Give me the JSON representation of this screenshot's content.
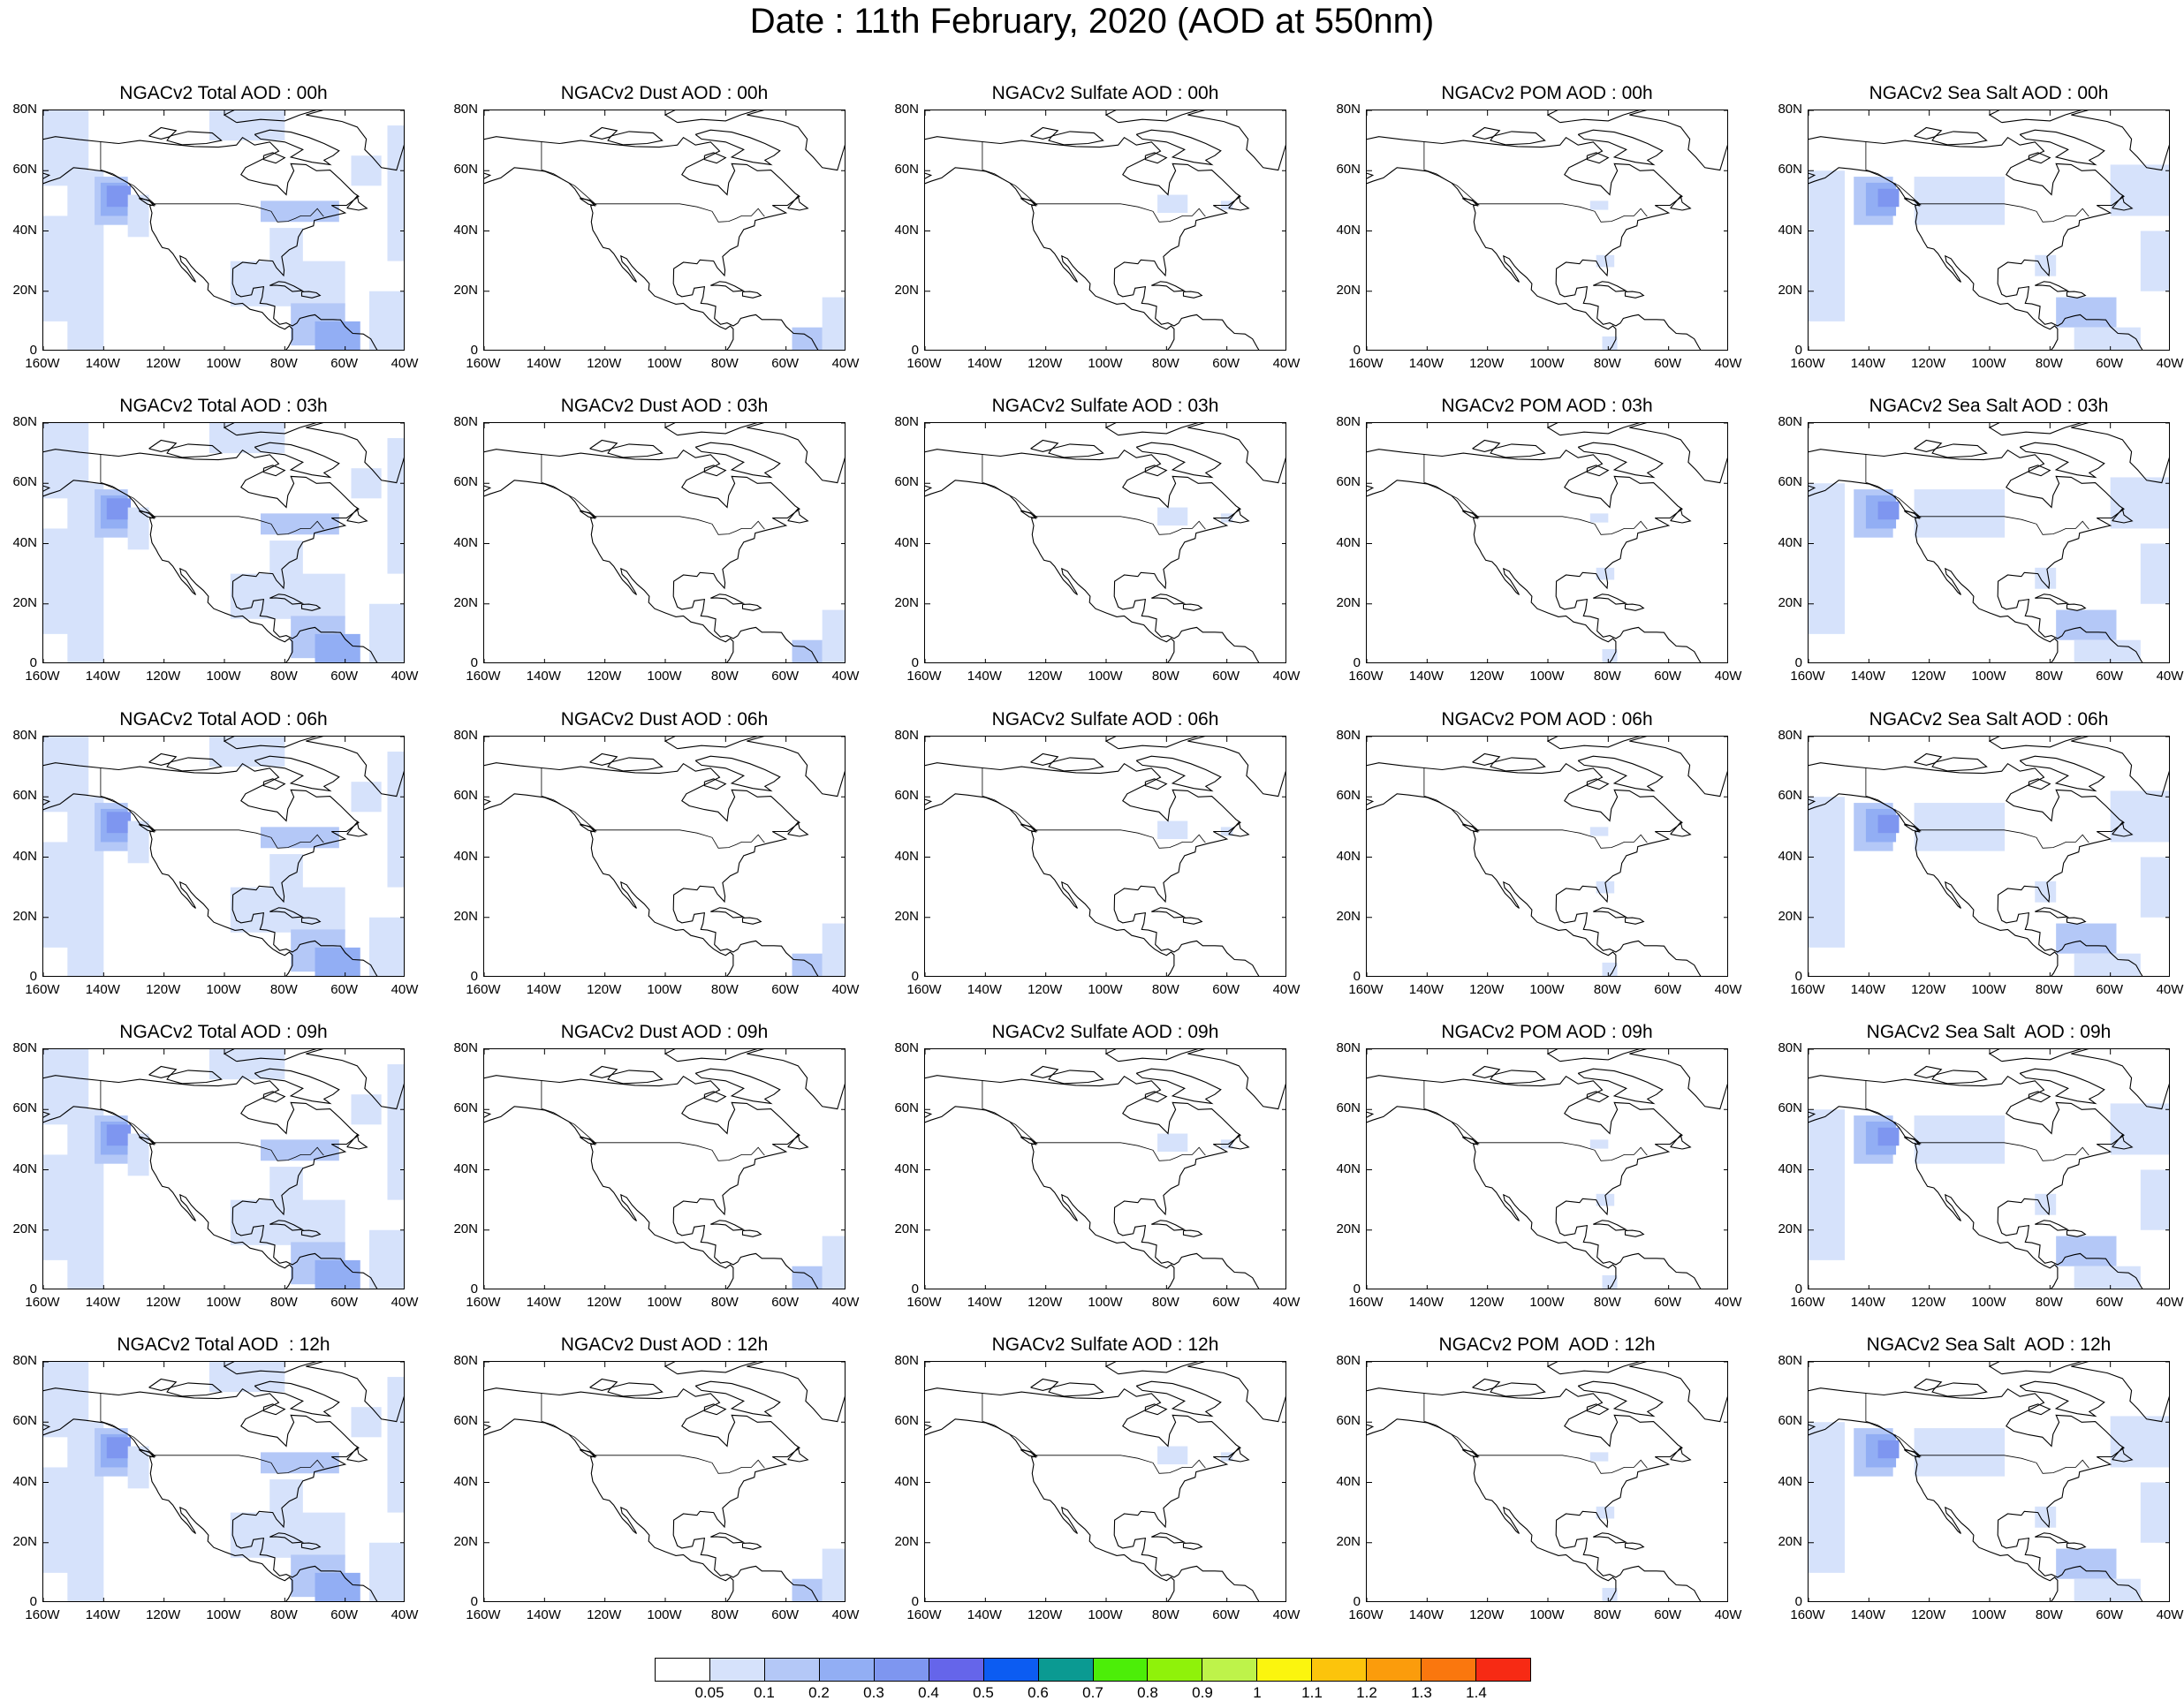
{
  "title": "Date : 11th February, 2020 (AOD at 550nm)",
  "columns": [
    "total",
    "dust",
    "sulfate",
    "pom",
    "seasalt"
  ],
  "panels": [
    [
      "NGACv2 Total AOD : 00h",
      "NGACv2 Dust AOD : 00h",
      "NGACv2 Sulfate AOD : 00h",
      "NGACv2 POM AOD : 00h",
      "NGACv2 Sea Salt AOD : 00h"
    ],
    [
      "NGACv2 Total AOD : 03h",
      "NGACv2 Dust AOD : 03h",
      "NGACv2 Sulfate AOD : 03h",
      "NGACv2 POM AOD : 03h",
      "NGACv2 Sea Salt AOD : 03h"
    ],
    [
      "NGACv2 Total AOD : 06h",
      "NGACv2 Dust AOD : 06h",
      "NGACv2 Sulfate AOD : 06h",
      "NGACv2 POM AOD : 06h",
      "NGACv2 Sea Salt AOD : 06h"
    ],
    [
      "NGACv2 Total AOD : 09h",
      "NGACv2 Dust AOD : 09h",
      "NGACv2 Sulfate AOD : 09h",
      "NGACv2 POM AOD : 09h",
      "NGACv2 Sea Salt  AOD : 09h"
    ],
    [
      "NGACv2 Total AOD  : 12h",
      "NGACv2 Dust AOD : 12h",
      "NGACv2 Sulfate AOD : 12h",
      "NGACv2 POM  AOD : 12h",
      "NGACv2 Sea Salt  AOD : 12h"
    ]
  ],
  "map_extent": {
    "lon": [
      -160,
      -40
    ],
    "lat": [
      0,
      80
    ]
  },
  "lat_ticks": [
    "80N",
    "60N",
    "40N",
    "20N",
    "0"
  ],
  "lon_ticks": [
    "160W",
    "140W",
    "120W",
    "100W",
    "80W",
    "60W",
    "40W"
  ],
  "colorbar": {
    "colors": [
      "#ffffff",
      "#d6e2fb",
      "#b4c8f7",
      "#92aef4",
      "#7e96f0",
      "#6565ea",
      "#0c5cf2",
      "#0b9a92",
      "#4cee08",
      "#8ff20a",
      "#bef34a",
      "#fbf50e",
      "#fcc40c",
      "#fb9c0c",
      "#fa770e",
      "#f72a14"
    ],
    "labels": [
      "0.05",
      "0.1",
      "0.2",
      "0.3",
      "0.4",
      "0.5",
      "0.6",
      "0.7",
      "0.8",
      "0.9",
      "1",
      "1.1",
      "1.2",
      "1.3",
      "1.4"
    ]
  }
}
